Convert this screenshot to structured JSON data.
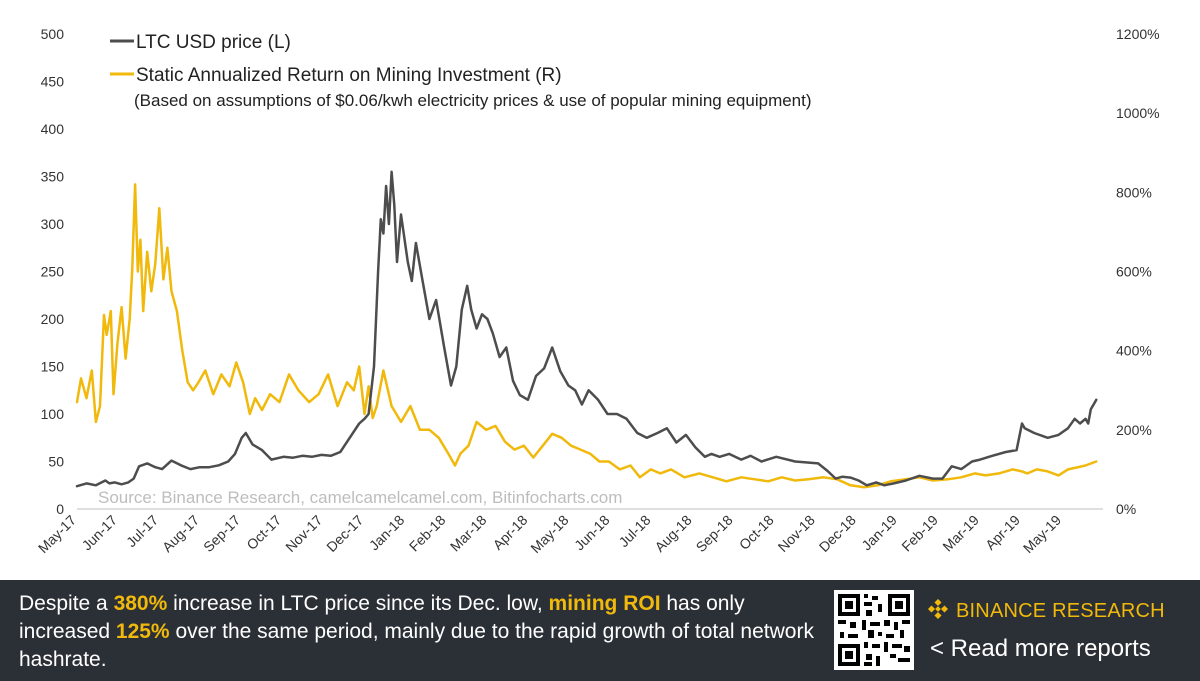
{
  "chart_data": {
    "type": "line",
    "left_axis": {
      "min": 0,
      "max": 500,
      "ticks": [
        "0",
        "50",
        "100",
        "150",
        "200",
        "250",
        "300",
        "350",
        "400",
        "450",
        "500"
      ]
    },
    "right_axis": {
      "min": 0,
      "max": 12,
      "ticks": [
        "0%",
        "200%",
        "400%",
        "600%",
        "800%",
        "1000%",
        "1200%"
      ]
    },
    "x_ticks": [
      "May-17",
      "Jun-17",
      "Jul-17",
      "Aug-17",
      "Sep-17",
      "Oct-17",
      "Nov-17",
      "Dec-17",
      "Jan-18",
      "Feb-18",
      "Mar-18",
      "Apr-18",
      "May-18",
      "Jun-18",
      "Jul-18",
      "Aug-18",
      "Sep-18",
      "Oct-18",
      "Nov-18",
      "Dec-18",
      "Jan-19",
      "Feb-19",
      "Mar-19",
      "Apr-19",
      "May-19"
    ],
    "x_range": [
      "2017-05-01",
      "2019-05-31"
    ],
    "grid": false,
    "legend": {
      "position": "top-left",
      "items": [
        "LTC USD price (L)",
        "Static Annualized Return on Mining Investment (R)"
      ],
      "note": "(Based on assumptions of $0.06/kwh electricity prices & use of popular mining equipment)"
    },
    "source": "Source: Binance Research, camelcamelcamel.com, Bitinfocharts.com",
    "series": [
      {
        "name": "LTC USD price (L)",
        "axis": "left",
        "color": "#4d4d4d",
        "x": [
          "2017-05-01",
          "2017-05-08",
          "2017-05-15",
          "2017-05-22",
          "2017-05-25",
          "2017-05-29",
          "2017-06-03",
          "2017-06-08",
          "2017-06-12",
          "2017-06-16",
          "2017-06-22",
          "2017-06-28",
          "2017-07-03",
          "2017-07-10",
          "2017-07-17",
          "2017-07-24",
          "2017-07-31",
          "2017-08-07",
          "2017-08-14",
          "2017-08-21",
          "2017-08-26",
          "2017-08-31",
          "2017-09-03",
          "2017-09-08",
          "2017-09-15",
          "2017-09-22",
          "2017-10-01",
          "2017-10-08",
          "2017-10-15",
          "2017-10-22",
          "2017-10-29",
          "2017-11-05",
          "2017-11-12",
          "2017-11-19",
          "2017-11-26",
          "2017-11-30",
          "2017-12-03",
          "2017-12-07",
          "2017-12-10",
          "2017-12-12",
          "2017-12-14",
          "2017-12-16",
          "2017-12-18",
          "2017-12-20",
          "2017-12-22",
          "2017-12-24",
          "2017-12-27",
          "2018-01-01",
          "2018-01-04",
          "2018-01-07",
          "2018-01-12",
          "2018-01-17",
          "2018-01-22",
          "2018-01-28",
          "2018-02-02",
          "2018-02-06",
          "2018-02-10",
          "2018-02-14",
          "2018-02-17",
          "2018-02-21",
          "2018-02-25",
          "2018-03-01",
          "2018-03-05",
          "2018-03-10",
          "2018-03-15",
          "2018-03-20",
          "2018-03-25",
          "2018-03-31",
          "2018-04-06",
          "2018-04-12",
          "2018-04-18",
          "2018-04-24",
          "2018-04-30",
          "2018-05-05",
          "2018-05-10",
          "2018-05-15",
          "2018-05-22",
          "2018-05-29",
          "2018-06-05",
          "2018-06-12",
          "2018-06-20",
          "2018-06-27",
          "2018-07-05",
          "2018-07-12",
          "2018-07-19",
          "2018-07-26",
          "2018-08-02",
          "2018-08-09",
          "2018-08-14",
          "2018-08-20",
          "2018-08-27",
          "2018-09-05",
          "2018-09-12",
          "2018-09-20",
          "2018-10-01",
          "2018-10-15",
          "2018-11-01",
          "2018-11-08",
          "2018-11-14",
          "2018-11-19",
          "2018-11-25",
          "2018-12-01",
          "2018-12-07",
          "2018-12-14",
          "2018-12-20",
          "2018-12-27",
          "2019-01-05",
          "2019-01-15",
          "2019-01-25",
          "2019-02-01",
          "2019-02-08",
          "2019-02-15",
          "2019-02-23",
          "2019-03-01",
          "2019-03-10",
          "2019-03-20",
          "2019-03-28",
          "2019-04-01",
          "2019-04-03",
          "2019-04-10",
          "2019-04-20",
          "2019-04-28",
          "2019-05-05",
          "2019-05-10",
          "2019-05-14",
          "2019-05-18",
          "2019-05-20",
          "2019-05-22",
          "2019-05-24",
          "2019-05-26"
        ],
        "values": [
          24,
          27,
          25,
          30,
          27,
          28,
          26,
          28,
          32,
          45,
          48,
          44,
          42,
          51,
          46,
          42,
          44,
          44,
          46,
          50,
          58,
          75,
          80,
          68,
          62,
          52,
          55,
          54,
          56,
          55,
          57,
          56,
          60,
          75,
          90,
          95,
          100,
          150,
          250,
          305,
          290,
          340,
          300,
          355,
          320,
          260,
          310,
          260,
          240,
          280,
          240,
          200,
          220,
          170,
          130,
          150,
          210,
          235,
          210,
          190,
          205,
          200,
          185,
          160,
          170,
          135,
          120,
          115,
          140,
          148,
          170,
          145,
          130,
          125,
          110,
          125,
          115,
          100,
          100,
          95,
          80,
          75,
          80,
          85,
          70,
          78,
          65,
          55,
          58,
          55,
          58,
          52,
          56,
          50,
          55,
          50,
          48,
          40,
          32,
          34,
          33,
          30,
          25,
          28,
          25,
          27,
          30,
          35,
          32,
          32,
          45,
          42,
          50,
          52,
          56,
          60,
          62,
          90,
          85,
          80,
          75,
          78,
          85,
          95,
          90,
          95,
          90,
          105,
          110,
          115
        ]
      },
      {
        "name": "Static Annualized Return on Mining Investment (R)",
        "axis": "right",
        "color": "#f0b90b",
        "x": [
          "2017-05-01",
          "2017-05-04",
          "2017-05-08",
          "2017-05-12",
          "2017-05-15",
          "2017-05-18",
          "2017-05-21",
          "2017-05-23",
          "2017-05-26",
          "2017-05-28",
          "2017-05-31",
          "2017-06-03",
          "2017-06-06",
          "2017-06-09",
          "2017-06-11",
          "2017-06-13",
          "2017-06-15",
          "2017-06-17",
          "2017-06-19",
          "2017-06-22",
          "2017-06-25",
          "2017-06-28",
          "2017-07-01",
          "2017-07-04",
          "2017-07-07",
          "2017-07-10",
          "2017-07-14",
          "2017-07-18",
          "2017-07-22",
          "2017-07-26",
          "2017-07-30",
          "2017-08-04",
          "2017-08-10",
          "2017-08-16",
          "2017-08-22",
          "2017-08-27",
          "2017-09-01",
          "2017-09-06",
          "2017-09-10",
          "2017-09-15",
          "2017-09-21",
          "2017-09-28",
          "2017-10-05",
          "2017-10-12",
          "2017-10-20",
          "2017-10-27",
          "2017-11-03",
          "2017-11-10",
          "2017-11-17",
          "2017-11-22",
          "2017-11-26",
          "2017-11-30",
          "2017-12-03",
          "2017-12-06",
          "2017-12-09",
          "2017-12-14",
          "2017-12-20",
          "2017-12-27",
          "2018-01-03",
          "2018-01-10",
          "2018-01-17",
          "2018-01-24",
          "2018-01-31",
          "2018-02-05",
          "2018-02-09",
          "2018-02-15",
          "2018-02-21",
          "2018-02-28",
          "2018-03-07",
          "2018-03-14",
          "2018-03-21",
          "2018-03-28",
          "2018-04-04",
          "2018-04-11",
          "2018-04-18",
          "2018-04-25",
          "2018-05-02",
          "2018-05-09",
          "2018-05-16",
          "2018-05-23",
          "2018-05-30",
          "2018-06-07",
          "2018-06-15",
          "2018-06-22",
          "2018-06-30",
          "2018-07-07",
          "2018-07-15",
          "2018-07-25",
          "2018-08-05",
          "2018-08-15",
          "2018-08-25",
          "2018-09-05",
          "2018-09-15",
          "2018-09-25",
          "2018-10-05",
          "2018-10-15",
          "2018-10-25",
          "2018-11-05",
          "2018-11-15",
          "2018-11-25",
          "2018-12-05",
          "2018-12-15",
          "2018-12-25",
          "2019-01-05",
          "2019-01-15",
          "2019-01-25",
          "2019-02-05",
          "2019-02-15",
          "2019-02-25",
          "2019-03-05",
          "2019-03-15",
          "2019-03-25",
          "2019-04-01",
          "2019-04-05",
          "2019-04-12",
          "2019-04-20",
          "2019-04-28",
          "2019-05-05",
          "2019-05-12",
          "2019-05-18",
          "2019-05-22",
          "2019-05-26"
        ],
        "values": [
          2.7,
          3.3,
          2.8,
          3.5,
          2.2,
          2.6,
          4.9,
          4.4,
          5.0,
          2.9,
          4.2,
          5.1,
          3.8,
          4.8,
          6.1,
          8.2,
          6.0,
          6.8,
          5.0,
          6.5,
          5.5,
          6.2,
          7.6,
          5.8,
          6.6,
          5.5,
          5.0,
          4.0,
          3.2,
          3.0,
          3.2,
          3.5,
          2.9,
          3.4,
          3.1,
          3.7,
          3.2,
          2.4,
          2.8,
          2.5,
          2.9,
          2.7,
          3.4,
          3.0,
          2.7,
          2.9,
          3.4,
          2.6,
          3.2,
          3.0,
          3.6,
          2.4,
          3.1,
          2.3,
          2.6,
          3.5,
          2.6,
          2.2,
          2.6,
          2.0,
          2.0,
          1.8,
          1.4,
          1.1,
          1.4,
          1.6,
          2.2,
          2.0,
          2.1,
          1.7,
          1.5,
          1.6,
          1.3,
          1.6,
          1.9,
          1.8,
          1.6,
          1.5,
          1.4,
          1.2,
          1.2,
          1.0,
          1.1,
          0.8,
          1.0,
          0.9,
          1.0,
          0.8,
          0.9,
          0.8,
          0.7,
          0.8,
          0.75,
          0.7,
          0.8,
          0.72,
          0.75,
          0.8,
          0.75,
          0.6,
          0.55,
          0.6,
          0.7,
          0.75,
          0.8,
          0.72,
          0.75,
          0.8,
          0.9,
          0.85,
          0.9,
          1.0,
          0.95,
          0.9,
          1.0,
          0.95,
          0.85,
          1.0,
          1.05,
          1.1,
          1.15,
          1.2
        ]
      }
    ]
  },
  "footer": {
    "caption_parts": [
      "Despite a ",
      "380%",
      " increase in LTC price since its Dec. low, ",
      "mining ROI",
      " has only increased ",
      "125%",
      " over the same period, mainly due to the rapid growth of total network hashrate."
    ],
    "brand_name": "BINANCE RESEARCH",
    "read_more": "< Read more reports",
    "brand_color": "#f0b90b",
    "footer_bg": "#2b2f36",
    "qr_icon": "qr-code",
    "brand_icon": "binance-diamond-logo"
  }
}
